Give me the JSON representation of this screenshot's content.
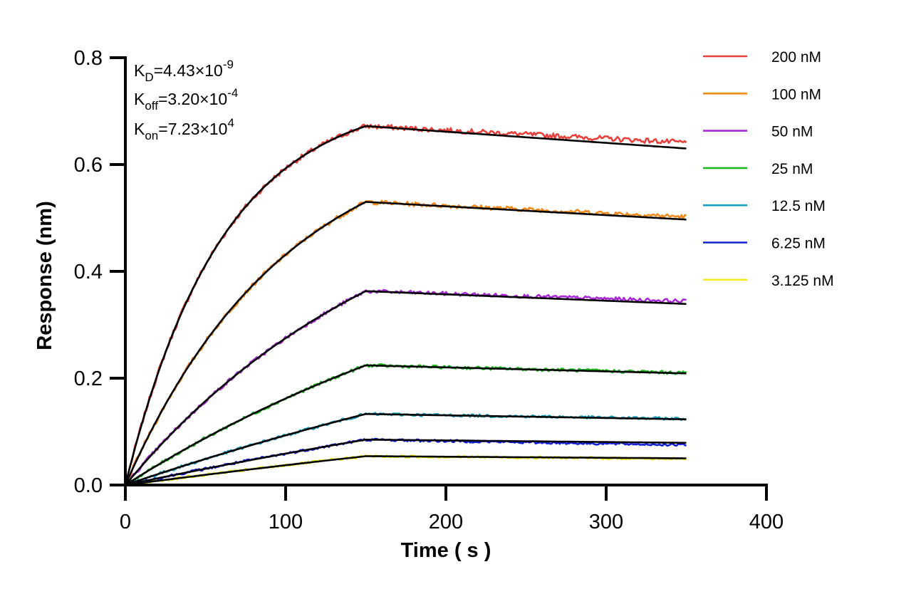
{
  "chart_data": {
    "type": "line",
    "xlabel": "Time ( s )",
    "ylabel": "Response (nm)",
    "xlim": [
      0,
      400
    ],
    "ylim": [
      0,
      0.8
    ],
    "xticks": [
      "0",
      "100",
      "200",
      "300",
      "400"
    ],
    "yticks": [
      "0.0",
      "0.2",
      "0.4",
      "0.6",
      "0.8"
    ],
    "grid": false,
    "legend_position": "top-right",
    "annotations": {
      "kd": {
        "label": "K",
        "sub": "D",
        "value": "=4.43×10",
        "exp": "-9"
      },
      "koff": {
        "label": "K",
        "sub": "off",
        "value": "=3.20×10",
        "exp": "-4"
      },
      "kon": {
        "label": "K",
        "sub": "on",
        "value": "=7.23×10",
        "exp": "4"
      }
    },
    "association_end_s": 150,
    "end_s": 350,
    "fit_color": "#000000",
    "series": [
      {
        "name": "200 nM",
        "color": "#e8413c",
        "plateau": 0.672,
        "end": 0.641,
        "fit_end": 0.63,
        "k": 0.0165
      },
      {
        "name": "100 nM",
        "color": "#f28a1e",
        "plateau": 0.53,
        "end": 0.502,
        "fit_end": 0.497,
        "k": 0.01
      },
      {
        "name": "50 nM",
        "color": "#a829d6",
        "plateau": 0.363,
        "end": 0.344,
        "fit_end": 0.339,
        "k": 0.0058
      },
      {
        "name": "25 nM",
        "color": "#1cb81c",
        "plateau": 0.224,
        "end": 0.21,
        "fit_end": 0.209,
        "k": 0.0035
      },
      {
        "name": "12.5 nM",
        "color": "#1a9fc0",
        "plateau": 0.133,
        "end": 0.124,
        "fit_end": 0.123,
        "k": 0.002
      },
      {
        "name": "6.25 nM",
        "color": "#1220d8",
        "plateau": 0.085,
        "end": 0.075,
        "fit_end": 0.079,
        "k": 0.0015
      },
      {
        "name": "3.125 nM",
        "color": "#f2ea20",
        "plateau": 0.054,
        "end": 0.049,
        "fit_end": 0.05,
        "k": 0.0012
      }
    ]
  }
}
